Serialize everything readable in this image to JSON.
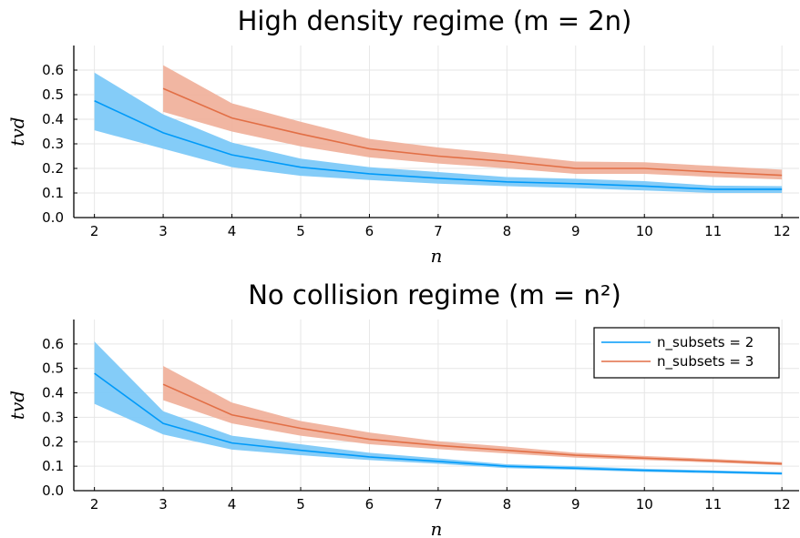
{
  "colors": {
    "series1": "#009af9",
    "series1_band": "#7dc9f8",
    "series2": "#e26f46",
    "series2_band": "#efae98",
    "grid": "#e6e6e6"
  },
  "chart_data": [
    {
      "type": "line",
      "title": "High density regime (m = 2n)",
      "xlabel": "n",
      "ylabel": "tvd",
      "xlim": [
        1.7,
        12.25
      ],
      "ylim": [
        0,
        0.7
      ],
      "xticks": [
        2,
        3,
        4,
        5,
        6,
        7,
        8,
        9,
        10,
        11,
        12
      ],
      "yticks": [
        0.0,
        0.1,
        0.2,
        0.3,
        0.4,
        0.5,
        0.6
      ],
      "grid": true,
      "legend": "none",
      "series": [
        {
          "name": "n_subsets = 2",
          "x": [
            2,
            3,
            4,
            5,
            6,
            7,
            8,
            9,
            10,
            11,
            12
          ],
          "y": [
            0.475,
            0.345,
            0.255,
            0.205,
            0.178,
            0.16,
            0.145,
            0.138,
            0.128,
            0.115,
            0.115
          ],
          "lower": [
            0.355,
            0.28,
            0.205,
            0.17,
            0.153,
            0.138,
            0.128,
            0.12,
            0.11,
            0.1,
            0.1
          ],
          "upper": [
            0.59,
            0.42,
            0.305,
            0.24,
            0.205,
            0.185,
            0.165,
            0.158,
            0.148,
            0.13,
            0.128
          ]
        },
        {
          "name": "n_subsets = 3",
          "x": [
            3,
            4,
            5,
            6,
            7,
            8,
            9,
            10,
            11,
            12
          ],
          "y": [
            0.525,
            0.405,
            0.34,
            0.28,
            0.25,
            0.228,
            0.2,
            0.2,
            0.185,
            0.172
          ],
          "lower": [
            0.43,
            0.35,
            0.29,
            0.245,
            0.22,
            0.2,
            0.178,
            0.178,
            0.165,
            0.155
          ],
          "upper": [
            0.62,
            0.465,
            0.39,
            0.32,
            0.285,
            0.258,
            0.228,
            0.225,
            0.21,
            0.195
          ]
        }
      ]
    },
    {
      "type": "line",
      "title": "No collision regime (m = n²)",
      "xlabel": "n",
      "ylabel": "tvd",
      "xlim": [
        1.7,
        12.25
      ],
      "ylim": [
        0,
        0.7
      ],
      "xticks": [
        2,
        3,
        4,
        5,
        6,
        7,
        8,
        9,
        10,
        11,
        12
      ],
      "yticks": [
        0.0,
        0.1,
        0.2,
        0.3,
        0.4,
        0.5,
        0.6
      ],
      "grid": true,
      "legend": "top-right",
      "series": [
        {
          "name": "n_subsets = 2",
          "x": [
            2,
            3,
            4,
            5,
            6,
            7,
            8,
            9,
            10,
            11,
            12
          ],
          "y": [
            0.48,
            0.275,
            0.195,
            0.165,
            0.138,
            0.12,
            0.1,
            0.092,
            0.083,
            0.077,
            0.07
          ],
          "lower": [
            0.355,
            0.23,
            0.168,
            0.145,
            0.125,
            0.11,
            0.092,
            0.085,
            0.077,
            0.071,
            0.065
          ],
          "upper": [
            0.61,
            0.325,
            0.225,
            0.19,
            0.155,
            0.132,
            0.108,
            0.1,
            0.09,
            0.083,
            0.076
          ]
        },
        {
          "name": "n_subsets = 3",
          "x": [
            3,
            4,
            5,
            6,
            7,
            8,
            9,
            10,
            11,
            12
          ],
          "y": [
            0.435,
            0.31,
            0.255,
            0.21,
            0.185,
            0.165,
            0.145,
            0.133,
            0.122,
            0.11
          ],
          "lower": [
            0.37,
            0.275,
            0.225,
            0.19,
            0.17,
            0.152,
            0.135,
            0.125,
            0.115,
            0.104
          ],
          "upper": [
            0.51,
            0.36,
            0.285,
            0.238,
            0.202,
            0.18,
            0.155,
            0.142,
            0.13,
            0.117
          ]
        }
      ]
    }
  ]
}
